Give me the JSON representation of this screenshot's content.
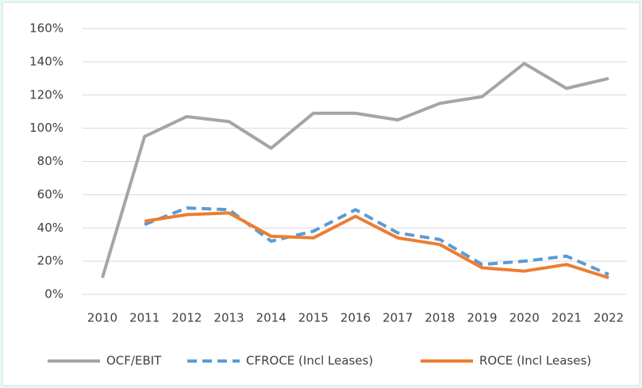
{
  "chart_data": {
    "type": "line",
    "categories": [
      "2010",
      "2011",
      "2012",
      "2013",
      "2014",
      "2015",
      "2016",
      "2017",
      "2018",
      "2019",
      "2020",
      "2021",
      "2022"
    ],
    "series": [
      {
        "name": "OCF/EBIT",
        "color": "#a5a5a5",
        "style": "solid",
        "values": [
          10,
          95,
          107,
          104,
          88,
          109,
          109,
          105,
          115,
          119,
          139,
          124,
          130
        ]
      },
      {
        "name": "CFROCE (Incl Leases)",
        "color": "#5b9bd5",
        "style": "dashed",
        "values": [
          null,
          42,
          52,
          51,
          32,
          38,
          51,
          37,
          33,
          18,
          20,
          23,
          12
        ]
      },
      {
        "name": "ROCE (Incl Leases)",
        "color": "#ed7d31",
        "style": "solid",
        "values": [
          null,
          44,
          48,
          49,
          35,
          34,
          47,
          34,
          30,
          16,
          14,
          18,
          10
        ]
      }
    ],
    "ylim": [
      0,
      160
    ],
    "yticks": [
      {
        "value": 0,
        "label": "0%"
      },
      {
        "value": 20,
        "label": "20%"
      },
      {
        "value": 40,
        "label": "40%"
      },
      {
        "value": 60,
        "label": "60%"
      },
      {
        "value": 80,
        "label": "80%"
      },
      {
        "value": 100,
        "label": "100%"
      },
      {
        "value": 120,
        "label": "120%"
      },
      {
        "value": 140,
        "label": "140%"
      },
      {
        "value": 160,
        "label": "160%"
      }
    ],
    "grid": true,
    "legend": "bottom"
  }
}
